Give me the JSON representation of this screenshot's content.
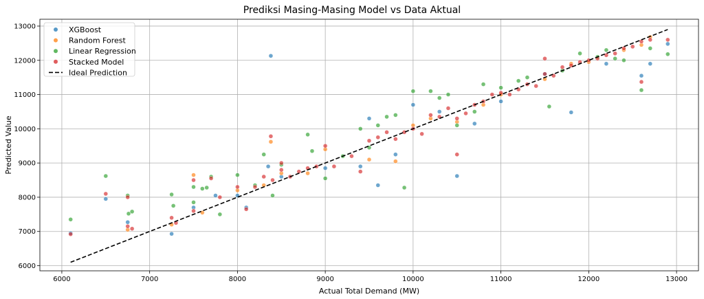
{
  "chart_data": {
    "type": "scatter",
    "title": "Prediksi Masing-Masing Model vs Data Aktual",
    "xlabel": "Actual Total Demand (MW)",
    "ylabel": "Predicted Value",
    "xlim": [
      5750,
      13250
    ],
    "ylim": [
      5850,
      13200
    ],
    "x_ticks": [
      "6000",
      "7000",
      "8000",
      "9000",
      "10000",
      "11000",
      "12000",
      "13000"
    ],
    "y_ticks": [
      "6000",
      "7000",
      "8000",
      "9000",
      "10000",
      "11000",
      "12000",
      "13000"
    ],
    "grid": true,
    "legend_position": "top-left",
    "series": [
      {
        "name": "XGBoost",
        "color": "#1f77b4",
        "points": [
          [
            6100,
            6950
          ],
          [
            6500,
            7950
          ],
          [
            6750,
            7270
          ],
          [
            7250,
            6930
          ],
          [
            7500,
            7700
          ],
          [
            7750,
            8050
          ],
          [
            8000,
            8050
          ],
          [
            8100,
            7700
          ],
          [
            8350,
            8900
          ],
          [
            8380,
            12130
          ],
          [
            8500,
            8600
          ],
          [
            9000,
            8850
          ],
          [
            9400,
            8900
          ],
          [
            9500,
            10300
          ],
          [
            9600,
            8350
          ],
          [
            9800,
            9250
          ],
          [
            10000,
            10700
          ],
          [
            10300,
            10500
          ],
          [
            10500,
            8620
          ],
          [
            10700,
            10150
          ],
          [
            11000,
            10800
          ],
          [
            11500,
            11600
          ],
          [
            11800,
            10480
          ],
          [
            12200,
            11900
          ],
          [
            12600,
            11550
          ],
          [
            12700,
            11900
          ],
          [
            12900,
            12480
          ]
        ]
      },
      {
        "name": "Random Forest",
        "color": "#ff7f0e",
        "points": [
          [
            6750,
            7050
          ],
          [
            7250,
            7200
          ],
          [
            7500,
            8650
          ],
          [
            7600,
            7550
          ],
          [
            8000,
            8200
          ],
          [
            8300,
            8350
          ],
          [
            8380,
            9620
          ],
          [
            8500,
            8700
          ],
          [
            8800,
            8700
          ],
          [
            9000,
            9400
          ],
          [
            9500,
            9100
          ],
          [
            9800,
            9050
          ],
          [
            10000,
            10100
          ],
          [
            10200,
            10300
          ],
          [
            10500,
            10200
          ],
          [
            10800,
            10700
          ],
          [
            11000,
            11000
          ],
          [
            11500,
            11450
          ],
          [
            11800,
            11900
          ],
          [
            12000,
            11950
          ],
          [
            12400,
            12300
          ],
          [
            12600,
            12450
          ],
          [
            12700,
            12680
          ]
        ]
      },
      {
        "name": "Linear Regression",
        "color": "#2ca02c",
        "points": [
          [
            6100,
            7350
          ],
          [
            6500,
            8620
          ],
          [
            6750,
            8050
          ],
          [
            6760,
            7520
          ],
          [
            6800,
            7580
          ],
          [
            7250,
            8080
          ],
          [
            7270,
            7750
          ],
          [
            7500,
            8300
          ],
          [
            7500,
            7850
          ],
          [
            7600,
            8250
          ],
          [
            7650,
            8280
          ],
          [
            7700,
            8600
          ],
          [
            7800,
            7500
          ],
          [
            8000,
            8650
          ],
          [
            8200,
            8350
          ],
          [
            8300,
            9250
          ],
          [
            8400,
            8050
          ],
          [
            8500,
            8950
          ],
          [
            8800,
            9830
          ],
          [
            8850,
            9350
          ],
          [
            9000,
            8550
          ],
          [
            9200,
            9200
          ],
          [
            9400,
            10000
          ],
          [
            9500,
            9450
          ],
          [
            9600,
            10100
          ],
          [
            9700,
            10350
          ],
          [
            9800,
            10400
          ],
          [
            9900,
            8280
          ],
          [
            10000,
            11100
          ],
          [
            10200,
            11100
          ],
          [
            10300,
            10900
          ],
          [
            10400,
            11000
          ],
          [
            10500,
            10100
          ],
          [
            10700,
            10500
          ],
          [
            10800,
            11300
          ],
          [
            11000,
            11200
          ],
          [
            11200,
            11400
          ],
          [
            11300,
            11500
          ],
          [
            11550,
            10650
          ],
          [
            11700,
            11700
          ],
          [
            11900,
            12200
          ],
          [
            12100,
            12100
          ],
          [
            12200,
            12300
          ],
          [
            12300,
            12050
          ],
          [
            12400,
            12000
          ],
          [
            12600,
            11130
          ],
          [
            12700,
            12350
          ],
          [
            12900,
            12180
          ]
        ]
      },
      {
        "name": "Stacked Model",
        "color": "#d62728",
        "points": [
          [
            6100,
            6920
          ],
          [
            6500,
            8100
          ],
          [
            6750,
            8000
          ],
          [
            6750,
            7150
          ],
          [
            6800,
            7080
          ],
          [
            7250,
            7400
          ],
          [
            7300,
            7250
          ],
          [
            7500,
            7600
          ],
          [
            7500,
            8500
          ],
          [
            7700,
            8550
          ],
          [
            7800,
            8000
          ],
          [
            8000,
            8300
          ],
          [
            8100,
            7650
          ],
          [
            8200,
            8300
          ],
          [
            8300,
            8600
          ],
          [
            8380,
            9780
          ],
          [
            8400,
            8500
          ],
          [
            8500,
            8800
          ],
          [
            8500,
            9000
          ],
          [
            8600,
            8600
          ],
          [
            8700,
            8750
          ],
          [
            8800,
            8850
          ],
          [
            8900,
            8900
          ],
          [
            9000,
            9500
          ],
          [
            9100,
            8900
          ],
          [
            9300,
            9200
          ],
          [
            9400,
            8750
          ],
          [
            9500,
            9650
          ],
          [
            9600,
            9750
          ],
          [
            9700,
            9900
          ],
          [
            9800,
            9700
          ],
          [
            9900,
            9900
          ],
          [
            10000,
            10000
          ],
          [
            10100,
            9850
          ],
          [
            10200,
            10400
          ],
          [
            10300,
            10350
          ],
          [
            10400,
            10600
          ],
          [
            10500,
            10300
          ],
          [
            10500,
            9250
          ],
          [
            10600,
            10450
          ],
          [
            10700,
            10700
          ],
          [
            10800,
            10800
          ],
          [
            10900,
            11000
          ],
          [
            11000,
            11050
          ],
          [
            11100,
            11000
          ],
          [
            11200,
            11150
          ],
          [
            11300,
            11300
          ],
          [
            11400,
            11250
          ],
          [
            11500,
            11600
          ],
          [
            11500,
            12050
          ],
          [
            11600,
            11550
          ],
          [
            11700,
            11800
          ],
          [
            11800,
            11850
          ],
          [
            11900,
            11950
          ],
          [
            12000,
            12000
          ],
          [
            12100,
            12050
          ],
          [
            12200,
            12150
          ],
          [
            12300,
            12200
          ],
          [
            12400,
            12350
          ],
          [
            12500,
            12400
          ],
          [
            12600,
            12550
          ],
          [
            12600,
            11370
          ],
          [
            12700,
            12600
          ],
          [
            12900,
            12600
          ]
        ]
      },
      {
        "name": "Ideal Prediction",
        "color": "#000000",
        "style": "dashed-line",
        "points": [
          [
            6100,
            6100
          ],
          [
            12900,
            12900
          ]
        ]
      }
    ]
  }
}
